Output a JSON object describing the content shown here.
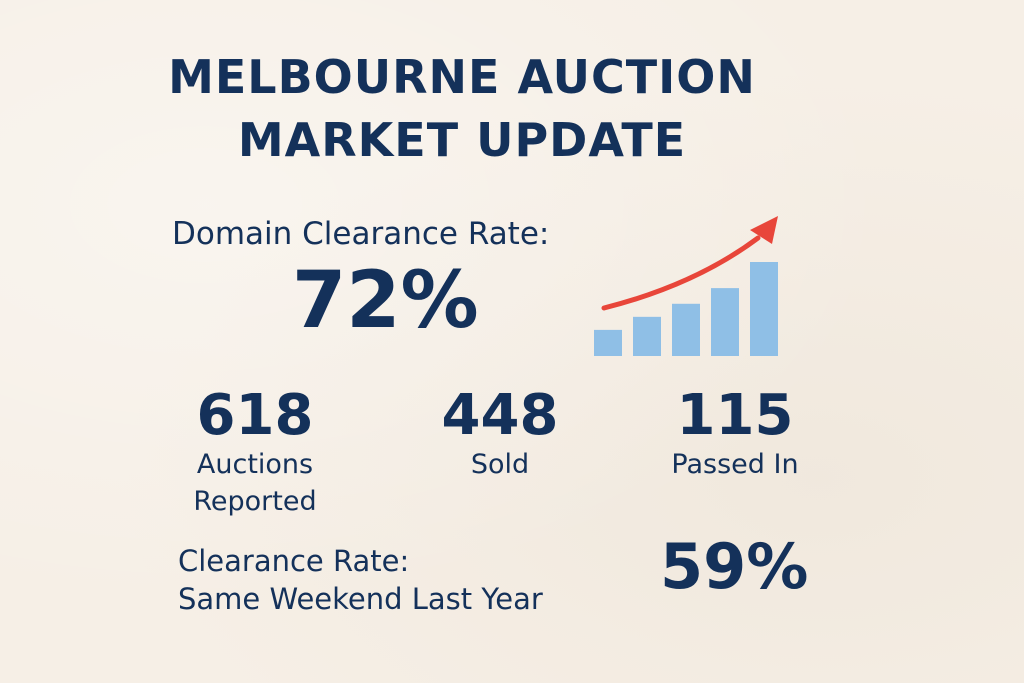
{
  "title": {
    "line1": "MELBOURNE AUCTION",
    "line2": "MARKET UPDATE"
  },
  "clearance": {
    "label": "Domain Clearance Rate:",
    "value": "72%"
  },
  "stats": [
    {
      "value": "618",
      "label_line1": "Auctions",
      "label_line2": "Reported"
    },
    {
      "value": "448",
      "label_line1": "Sold",
      "label_line2": ""
    },
    {
      "value": "115",
      "label_line1": "Passed In",
      "label_line2": ""
    }
  ],
  "last_year": {
    "label_line1": "Clearance Rate:",
    "label_line2": "Same Weekend Last Year",
    "value": "59%"
  },
  "chart_data": {
    "type": "bar",
    "values": [
      1,
      1.5,
      2,
      2.6,
      3.6
    ],
    "trend": "up",
    "colors": {
      "bar": "#8fbfe6",
      "arrow": "#e8463a"
    }
  }
}
